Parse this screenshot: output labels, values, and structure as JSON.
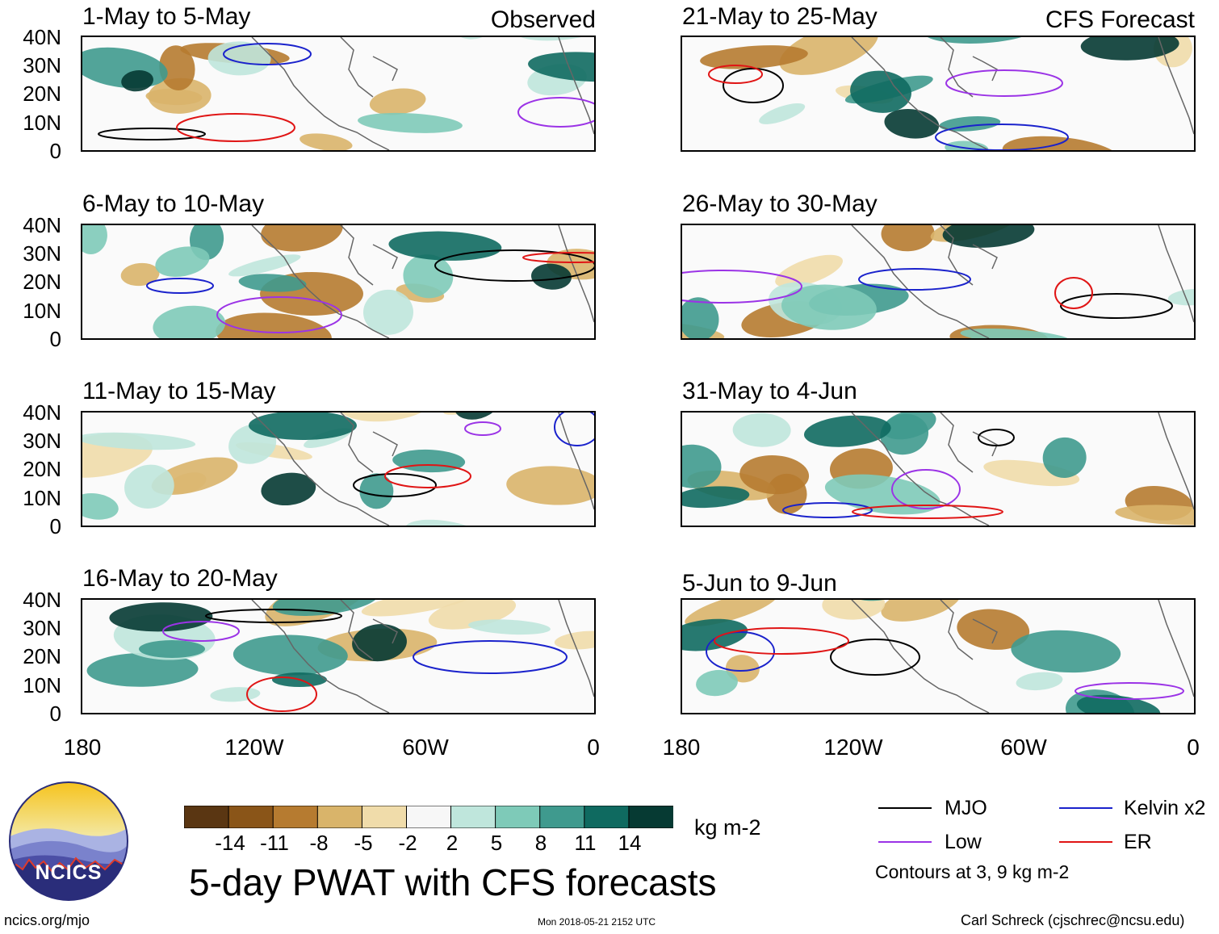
{
  "figure_title": "5-day PWAT with CFS forecasts",
  "observed_label": "Observed",
  "forecast_label": "CFS Forecast",
  "y_ticks": [
    "40N",
    "30N",
    "20N",
    "10N",
    "0"
  ],
  "x_ticks": [
    "180",
    "120W",
    "60W",
    "0"
  ],
  "panels": [
    {
      "title": "1-May to 5-May"
    },
    {
      "title": "6-May to 10-May"
    },
    {
      "title": "11-May to 15-May"
    },
    {
      "title": "16-May to 20-May"
    },
    {
      "title": "21-May to 25-May"
    },
    {
      "title": "26-May to 30-May"
    },
    {
      "title": "31-May to 4-Jun"
    },
    {
      "title": "5-Jun to 9-Jun"
    }
  ],
  "colorbar": {
    "unit": "kg m-2",
    "labels": [
      "-14",
      "-11",
      "-8",
      "-5",
      "-2",
      "2",
      "5",
      "8",
      "11",
      "14"
    ],
    "colors": [
      "#5a3612",
      "#8a5518",
      "#b67b30",
      "#d9b46a",
      "#f0dcaa",
      "#f7f7f7",
      "#bfe6dc",
      "#7ecab8",
      "#3f9a8e",
      "#0f6a60",
      "#063a33"
    ]
  },
  "legend": {
    "items": [
      {
        "label": "MJO",
        "color": "#000000"
      },
      {
        "label": "Kelvin x2",
        "color": "#1a22cc"
      },
      {
        "label": "Low",
        "color": "#9b33e6"
      },
      {
        "label": "ER",
        "color": "#e01515"
      }
    ],
    "note": "Contours at 3, 9 kg m-2"
  },
  "logo_text": "NCICS",
  "footer": {
    "url": "ncics.org/mjo",
    "timestamp": "Mon 2018-05-21 2152 UTC",
    "credit": "Carl Schreck (cjschrec@ncsu.edu)"
  }
}
